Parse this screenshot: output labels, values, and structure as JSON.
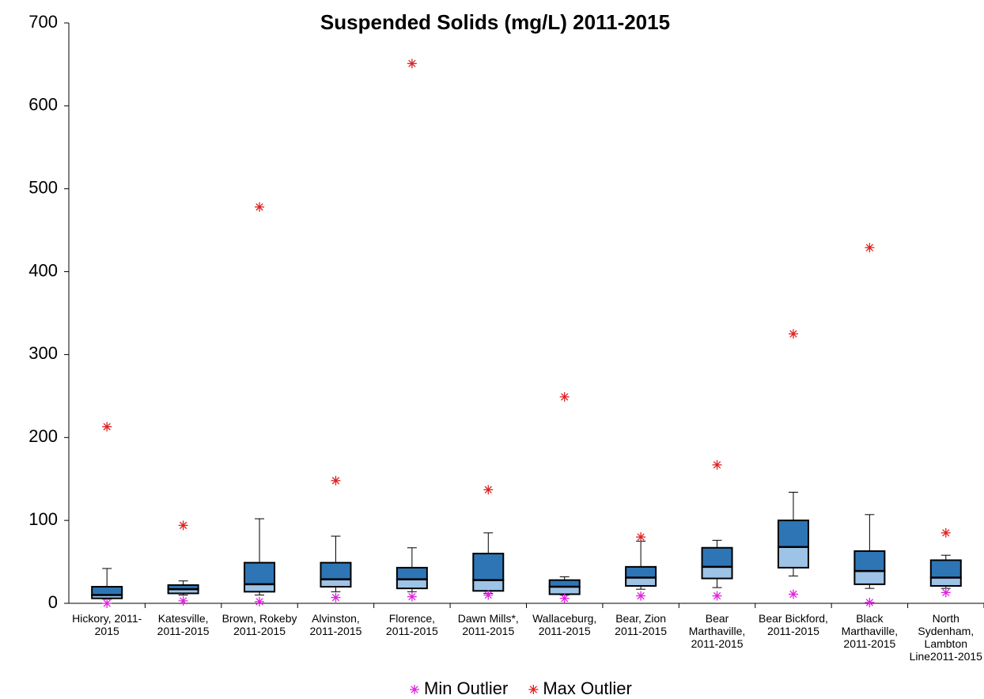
{
  "chart_data": {
    "type": "box",
    "title": "Suspended Solids (mg/L) 2011-2015",
    "categories": [
      "Hickory, 2011-2015",
      "Katesville, 2011-2015",
      "Brown, Rokeby 2011-2015",
      "Alvinston, 2011-2015",
      "Florence, 2011-2015",
      "Dawn Mills*, 2011-2015",
      "Wallaceburg, 2011-2015",
      "Bear, Zion 2011-2015",
      "Bear Marthaville, 2011-2015",
      "Bear Bickford, 2011-2015",
      "Black Marthaville, 2011-2015",
      "North Sydenham, Lambton Line2011-2015"
    ],
    "whisker_low": [
      5,
      10,
      10,
      14,
      14,
      12,
      10,
      17,
      19,
      33,
      18,
      18
    ],
    "q1": [
      6,
      12,
      14,
      20,
      18,
      15,
      11,
      21,
      30,
      43,
      23,
      21
    ],
    "median": [
      10,
      17,
      23,
      29,
      29,
      28,
      20,
      31,
      44,
      68,
      39,
      31
    ],
    "q3": [
      20,
      22,
      49,
      49,
      43,
      60,
      28,
      44,
      67,
      100,
      63,
      52
    ],
    "whisker_high": [
      42,
      27,
      102,
      81,
      67,
      85,
      32,
      75,
      76,
      134,
      107,
      58
    ],
    "box_colors": {
      "lower": "#9dc3e6",
      "upper": "#2e75b6"
    },
    "series": [
      {
        "name": "Min Outlier",
        "color": "#e020e0",
        "values": [
          0,
          3,
          2,
          7,
          8,
          10,
          6,
          9,
          9,
          11,
          1,
          13
        ]
      },
      {
        "name": "Max Outlier",
        "color": "#e02020",
        "values": [
          213,
          94,
          478,
          148,
          651,
          137,
          249,
          80,
          167,
          325,
          429,
          85
        ]
      }
    ],
    "ylim": [
      0,
      700
    ],
    "yticks": [
      0,
      100,
      200,
      300,
      400,
      500,
      600,
      700
    ],
    "grid": false,
    "legend": "bottom"
  }
}
